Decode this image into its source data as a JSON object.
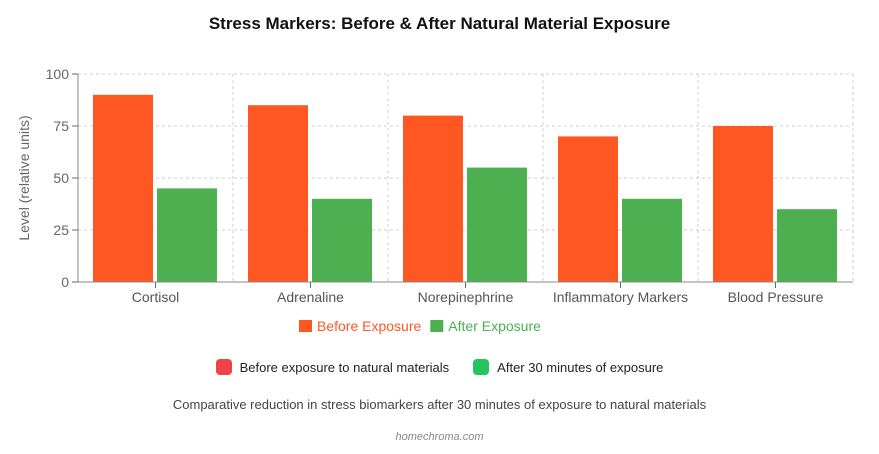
{
  "chart_data": {
    "type": "bar",
    "title": "Stress Markers: Before & After Natural Material Exposure",
    "ylabel": "Level (relative units)",
    "xlabel": "",
    "ylim": [
      0,
      100
    ],
    "yticks": [
      0,
      25,
      50,
      75,
      100
    ],
    "grid": true,
    "categories": [
      "Cortisol",
      "Adrenaline",
      "Norepinephrine",
      "Inflammatory Markers",
      "Blood Pressure"
    ],
    "series": [
      {
        "name": "Before Exposure",
        "color": "#ff5722",
        "values": [
          90,
          85,
          80,
          70,
          75
        ]
      },
      {
        "name": "After Exposure",
        "color": "#4caf50",
        "values": [
          45,
          40,
          55,
          40,
          35
        ]
      }
    ],
    "legend_placement": "bottom"
  },
  "legend2": [
    {
      "label": "Before exposure to natural materials",
      "color": "#ef4444"
    },
    {
      "label": "After 30 minutes of exposure",
      "color": "#22c55e"
    }
  ],
  "caption": "Comparative reduction in stress biomarkers after 30 minutes of exposure to natural materials",
  "source": "homechroma.com"
}
